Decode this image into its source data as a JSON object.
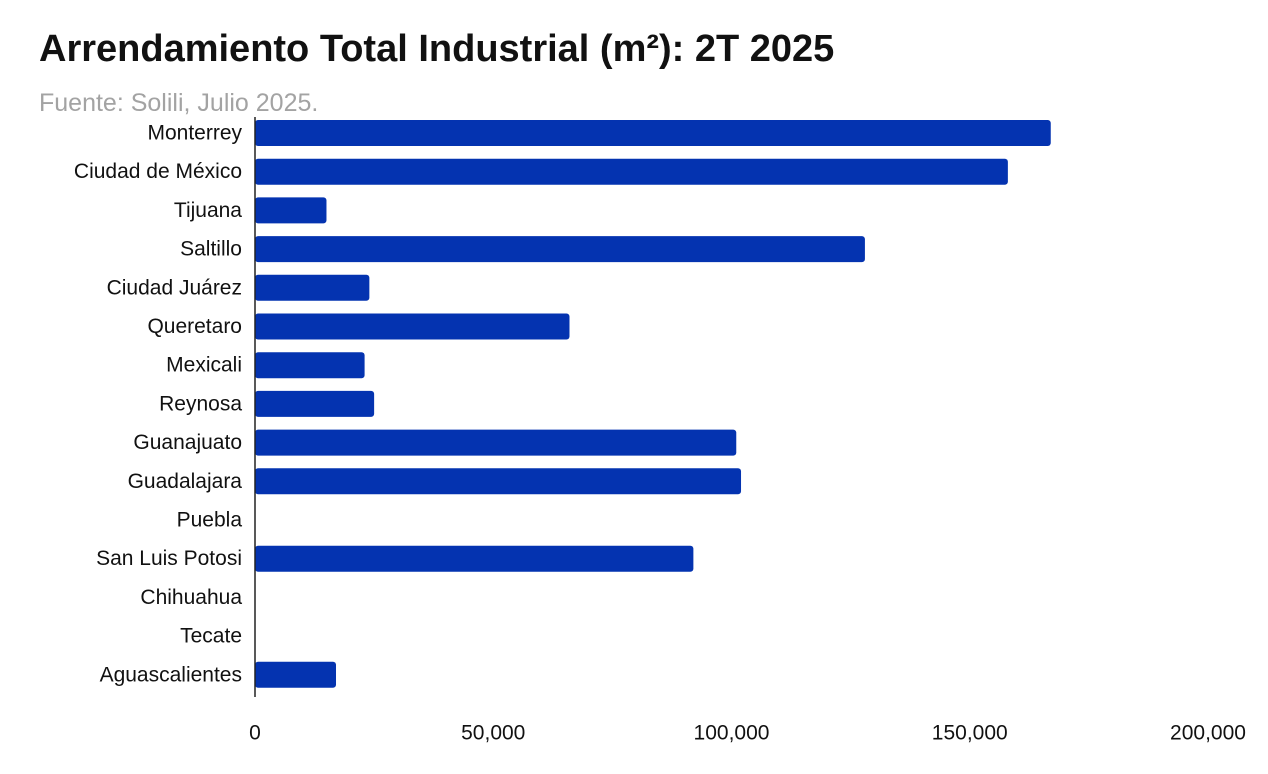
{
  "chart_data": {
    "type": "bar",
    "orientation": "horizontal",
    "title": "Arrendamiento Total Industrial (m²): 2T 2025",
    "subtitle": "Fuente: Solili, Julio 2025.",
    "categories": [
      "Monterrey",
      "Ciudad de México",
      "Tijuana",
      "Saltillo",
      "Ciudad Juárez",
      "Queretaro",
      "Mexicali",
      "Reynosa",
      "Guanajuato",
      "Guadalajara",
      "Puebla",
      "San Luis Potosi",
      "Chihuahua",
      "Tecate",
      "Aguascalientes"
    ],
    "values": [
      167000,
      158000,
      15000,
      128000,
      24000,
      66000,
      23000,
      25000,
      101000,
      102000,
      0,
      92000,
      0,
      0,
      17000
    ],
    "xlim": [
      0,
      200000
    ],
    "xticks": [
      0,
      50000,
      100000,
      150000,
      200000
    ],
    "xtick_labels": [
      "0",
      "50,000",
      "100,000",
      "150,000",
      "200,000"
    ],
    "xlabel": "",
    "ylabel": "",
    "grid": false,
    "legend": "none",
    "bar_color": "#0433b0"
  }
}
